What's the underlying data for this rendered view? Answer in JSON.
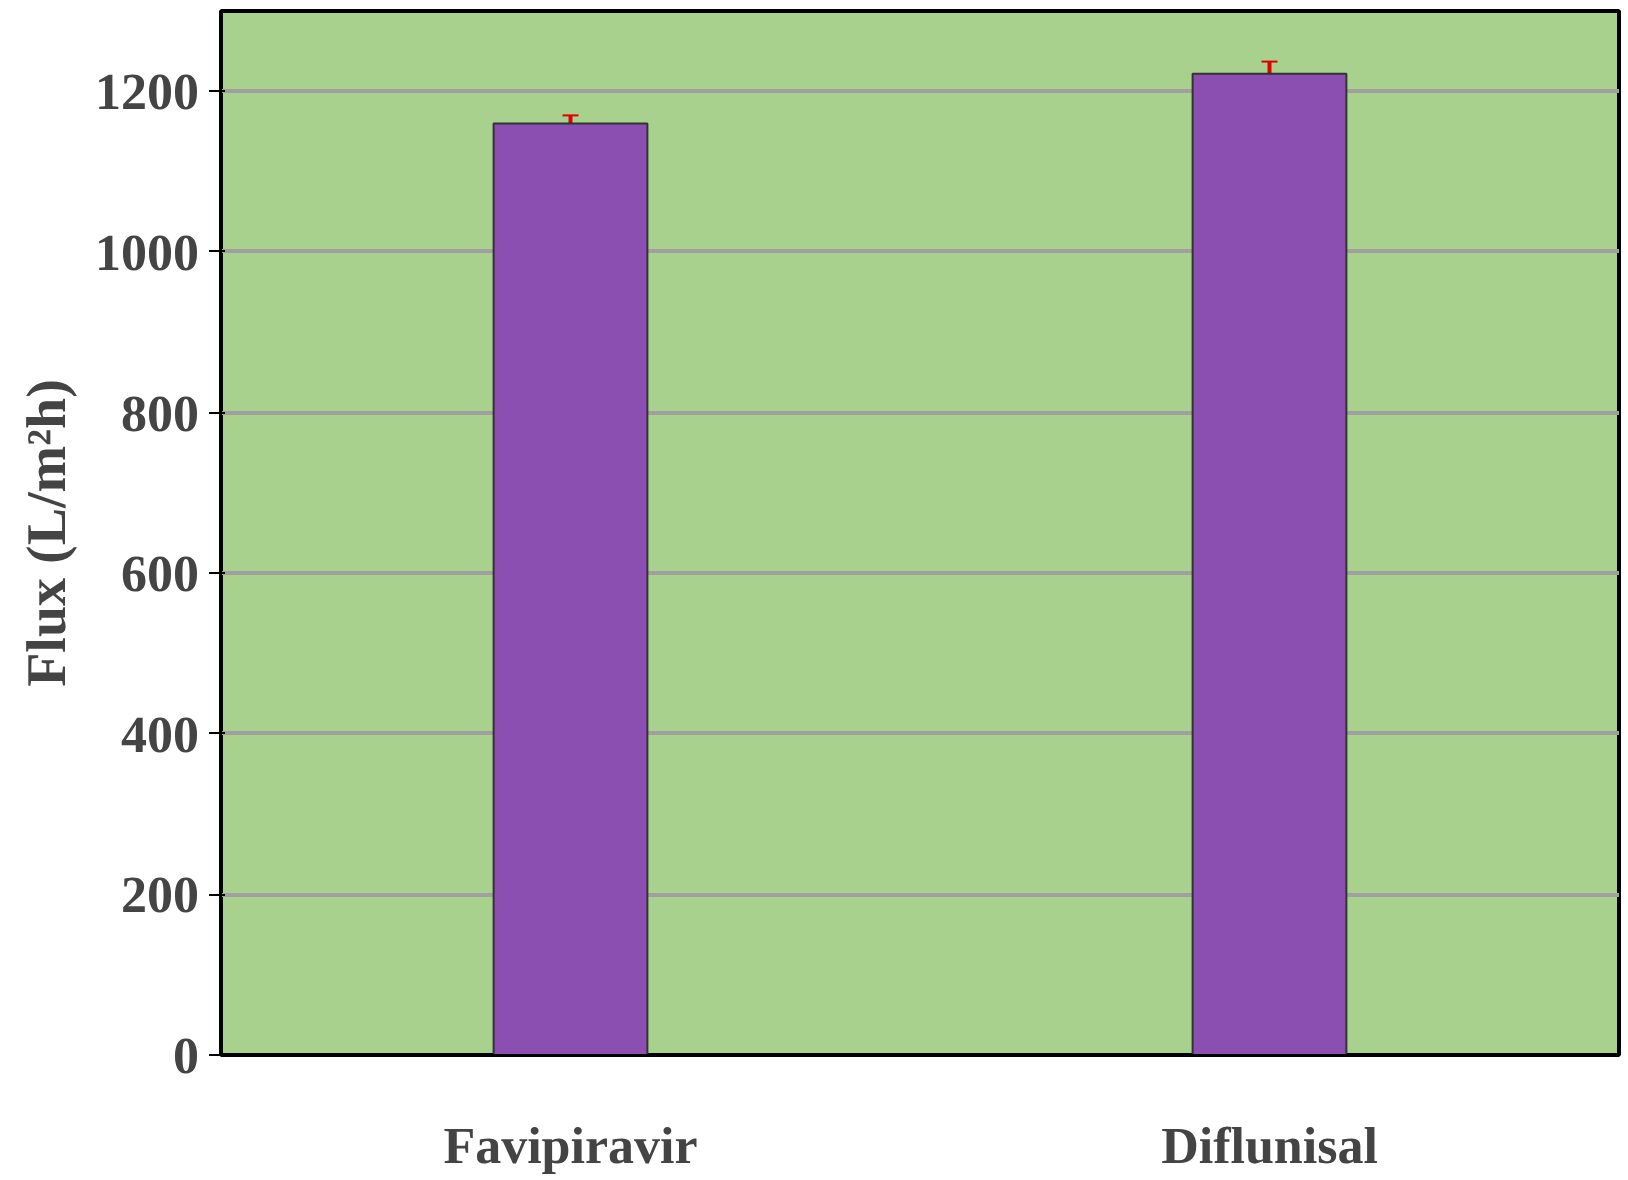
{
  "chart_data": {
    "type": "bar",
    "ylabel": "Flux (L/m²h)",
    "categories": [
      "Favipiravir",
      "Diflunisal"
    ],
    "values": [
      1160,
      1222
    ],
    "errors": [
      10,
      15
    ],
    "color": "#8a4fb0",
    "ylim": [
      0,
      1300
    ],
    "yticks": [
      0,
      200,
      400,
      600,
      800,
      1000,
      1200
    ],
    "grid": "y"
  }
}
